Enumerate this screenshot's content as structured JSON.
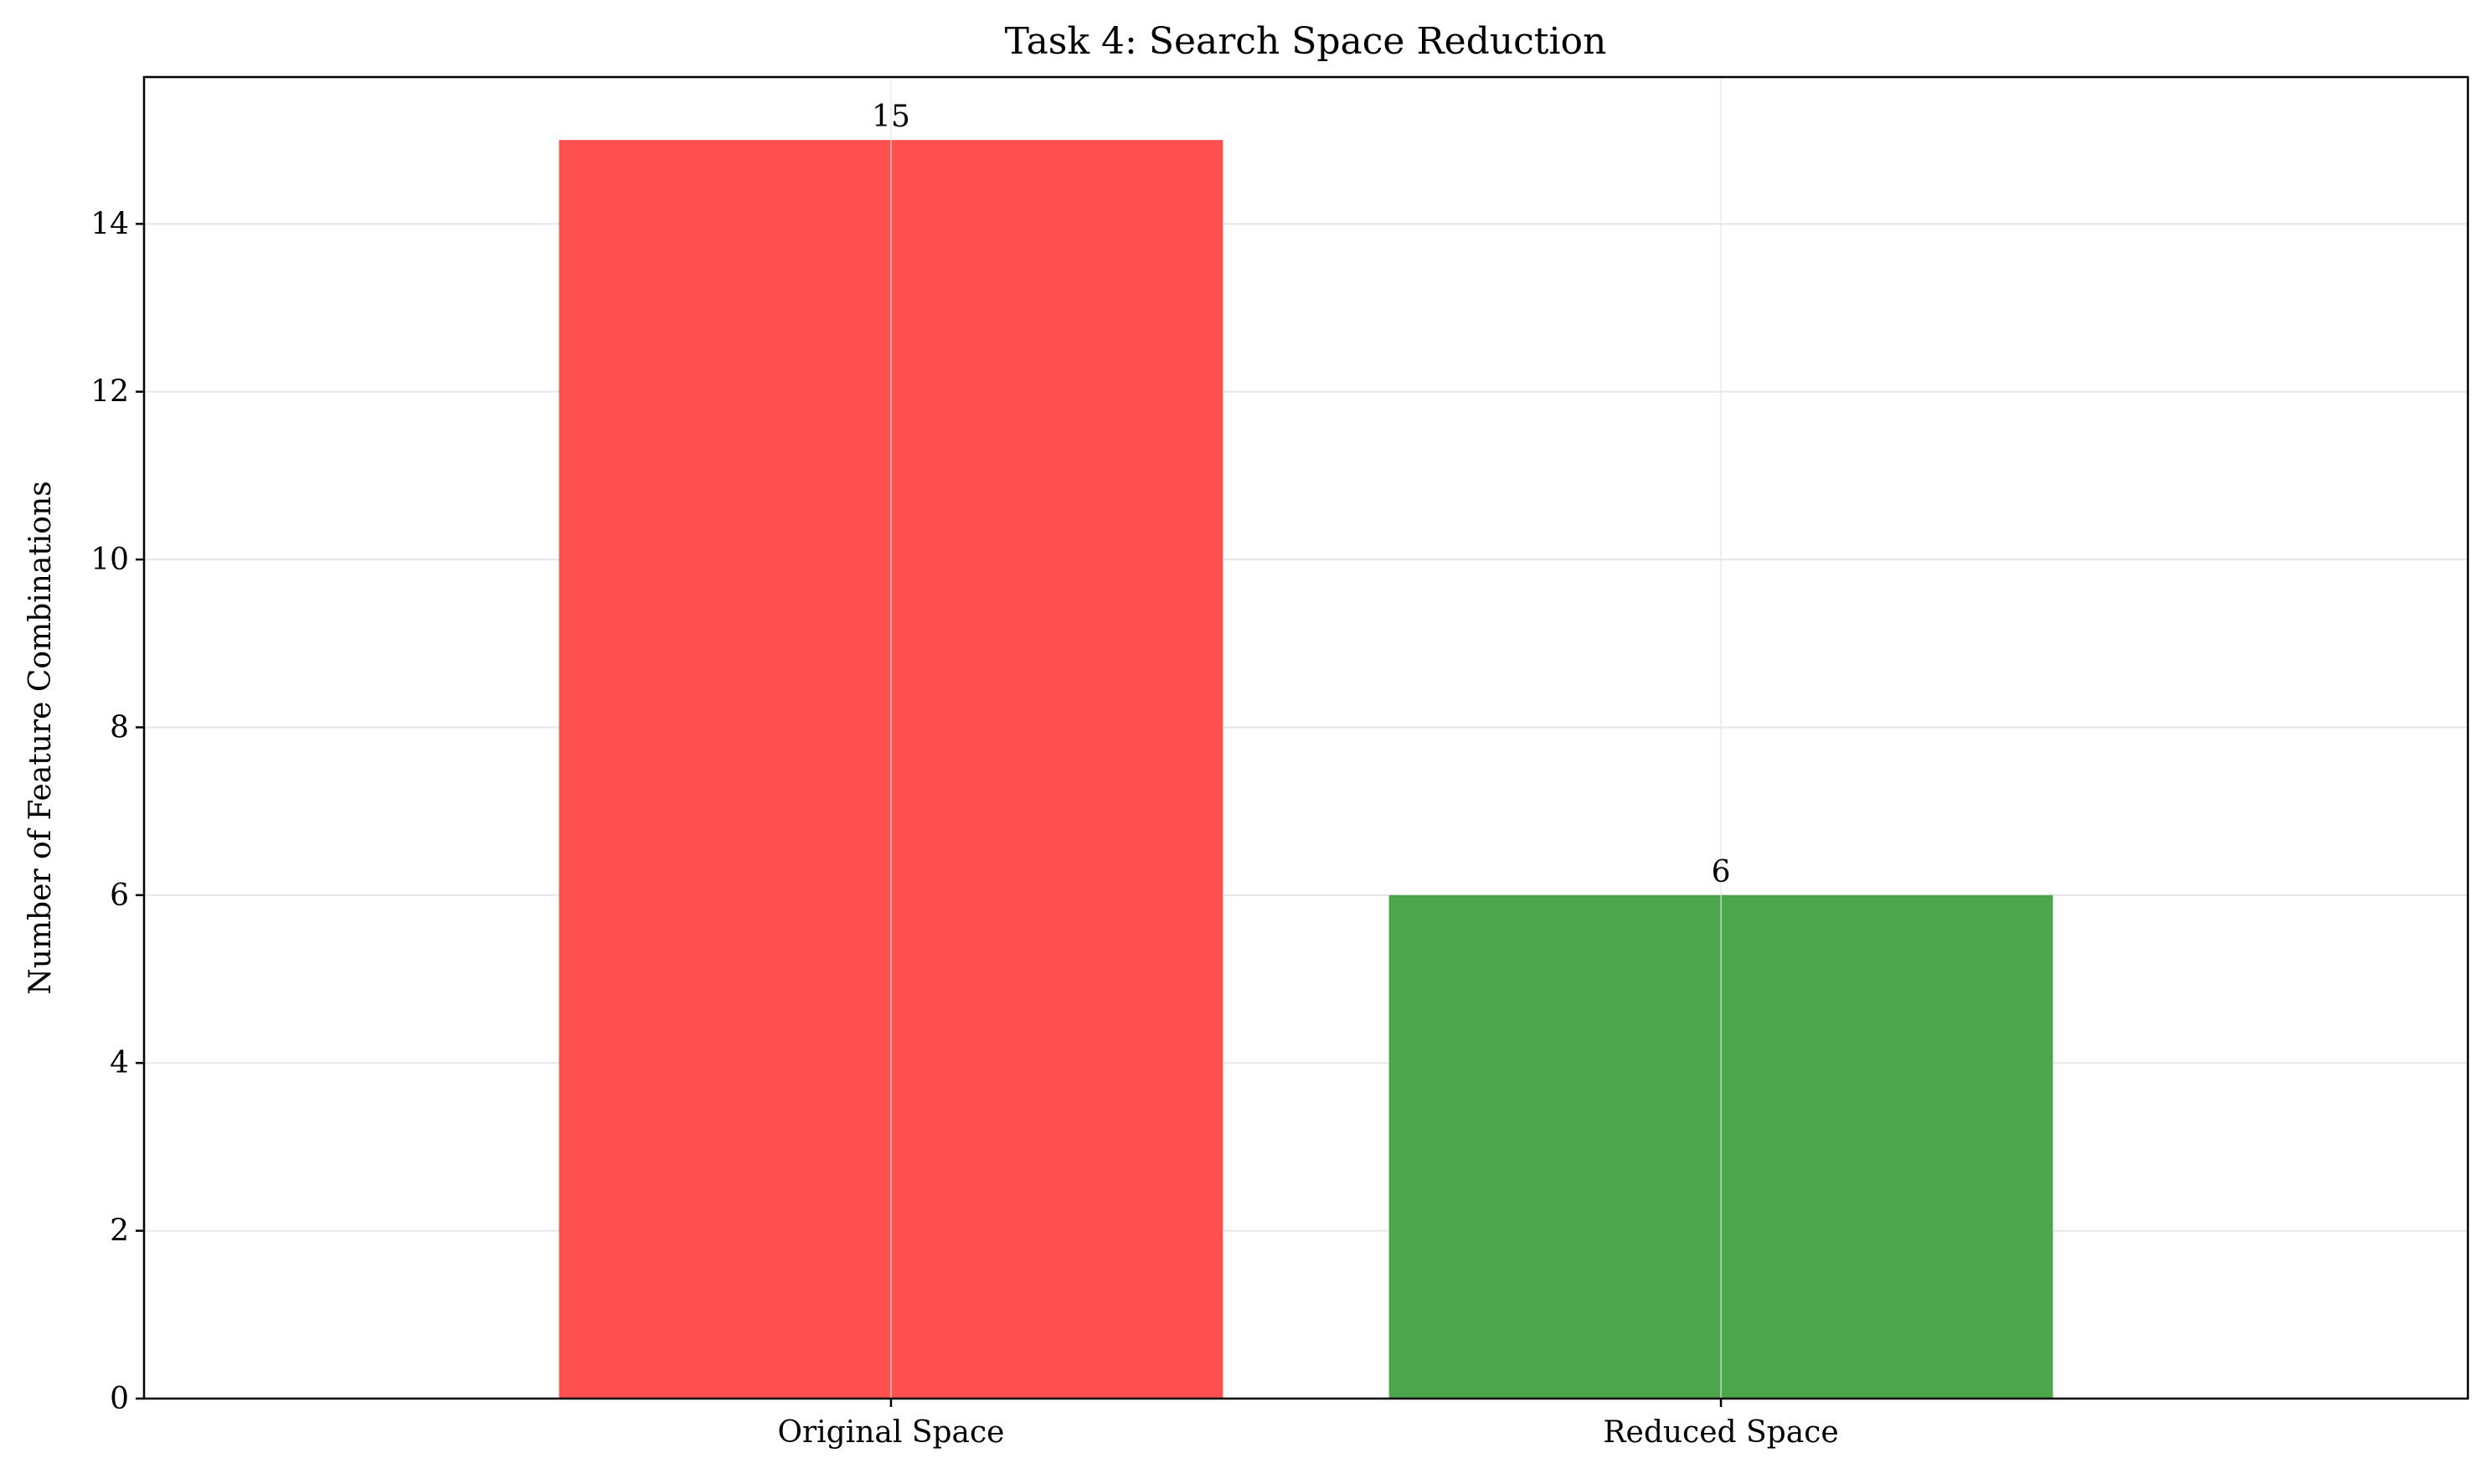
{
  "chart_data": {
    "type": "bar",
    "title": "Task 4: Search Space Reduction",
    "xlabel": "",
    "ylabel": "Number of Feature Combinations",
    "categories": [
      "Original Space",
      "Reduced Space"
    ],
    "values": [
      15,
      6
    ],
    "data_labels": [
      "15",
      "6"
    ],
    "colors": [
      "#ff5050",
      "#4ca64c"
    ],
    "ylim": [
      0,
      15.75
    ],
    "yticks": [
      0,
      2,
      4,
      6,
      8,
      10,
      12,
      14
    ],
    "grid": true,
    "legend": "none"
  }
}
